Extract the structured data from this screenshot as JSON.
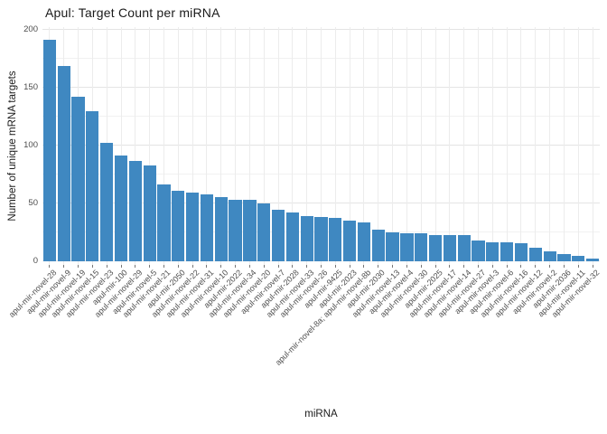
{
  "chart_data": {
    "type": "bar",
    "title": "Apul: Target Count per miRNA",
    "xlabel": "miRNA",
    "ylabel": "Number of unique mRNA targets",
    "ylim": [
      0,
      200
    ],
    "yticks": [
      0,
      50,
      100,
      150,
      200
    ],
    "yticks_minor": [
      25,
      75,
      125,
      175
    ],
    "grid": true,
    "legend": false,
    "bar_color": "#3f88c1",
    "background_color": "#ffffff",
    "gridline_color": "#e4e4e4",
    "tick_label_color": "#4d4d4d",
    "categories": [
      "apul-mir-novel-28",
      "apul-mir-novel-9",
      "apul-mir-novel-19",
      "apul-mir-novel-15",
      "apul-mir-novel-23",
      "apul-mir-100",
      "apul-mir-novel-29",
      "apul-mir-novel-5",
      "apul-mir-novel-21",
      "apul-mir-2050",
      "apul-mir-novel-22",
      "apul-mir-novel-31",
      "apul-mir-novel-10",
      "apul-mir-2022",
      "apul-mir-novel-34",
      "apul-mir-novel-20",
      "apul-mir-novel-7",
      "apul-mir-2028",
      "apul-mir-novel-33",
      "apul-mir-novel-26",
      "apul-mir-9425",
      "apul-mir-2023",
      "apul-mir-novel-8a; apul-mir-novel-8b",
      "apul-mir-2030",
      "apul-mir-novel-13",
      "apul-mir-novel-4",
      "apul-mir-novel-30",
      "apul-mir-2025",
      "apul-mir-novel-17",
      "apul-mir-novel-14",
      "apul-mir-novel-27",
      "apul-mir-novel-3",
      "apul-mir-novel-6",
      "apul-mir-novel-16",
      "apul-mir-novel-12",
      "apul-mir-novel-2",
      "apul-mir-2036",
      "apul-mir-novel-11",
      "apul-mir-novel-32"
    ],
    "values": [
      192,
      169,
      142,
      130,
      102,
      91,
      87,
      83,
      66,
      61,
      59,
      58,
      55,
      53,
      53,
      50,
      44,
      42,
      39,
      38,
      37,
      35,
      33,
      27,
      25,
      24,
      24,
      22,
      22,
      22,
      18,
      16,
      16,
      15,
      11,
      8,
      6,
      4,
      2
    ]
  }
}
